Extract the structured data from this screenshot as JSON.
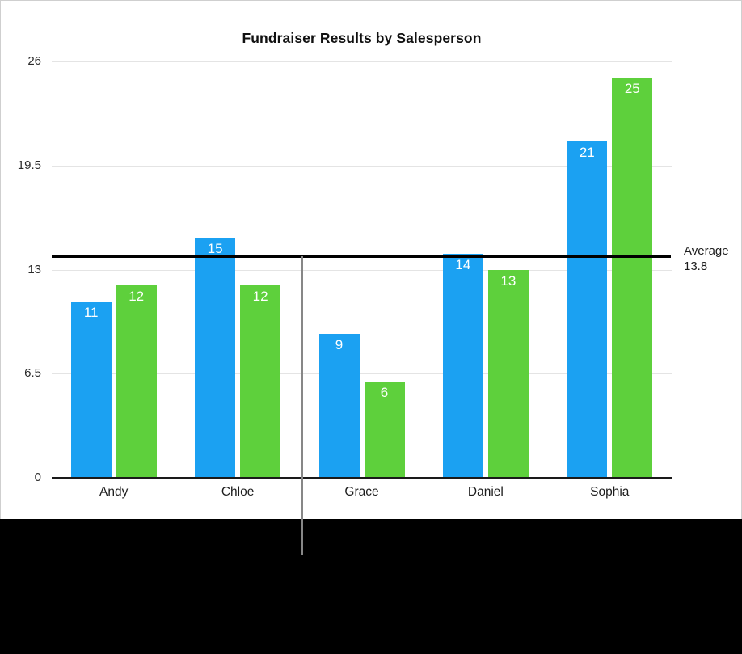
{
  "chart_data": {
    "type": "bar",
    "title": "Fundraiser Results by Salesperson",
    "categories": [
      "Andy",
      "Chloe",
      "Grace",
      "Daniel",
      "Sophia"
    ],
    "series": [
      {
        "name": "blue-series",
        "color": "#1ba1f2",
        "values": [
          11,
          15,
          9,
          14,
          21
        ]
      },
      {
        "name": "green-series",
        "color": "#5ed03c",
        "values": [
          12,
          12,
          6,
          13,
          25
        ]
      }
    ],
    "y_ticks": [
      26,
      19.5,
      13,
      6.5,
      0
    ],
    "ylim": [
      0,
      26
    ],
    "grid": true,
    "legend": "none",
    "value_labels": "inside-top",
    "annotations": {
      "average": {
        "value": 13.8,
        "label_line1": "Average",
        "label_line2": "13.8",
        "line_color": "#000000"
      }
    },
    "colors": {
      "grid": "#e4e4e4",
      "axis": "#1a1a1a",
      "value_label_text": "#ffffff",
      "background": "#ffffff",
      "letterbox": "#000000",
      "pointer_line": "#878787"
    }
  }
}
